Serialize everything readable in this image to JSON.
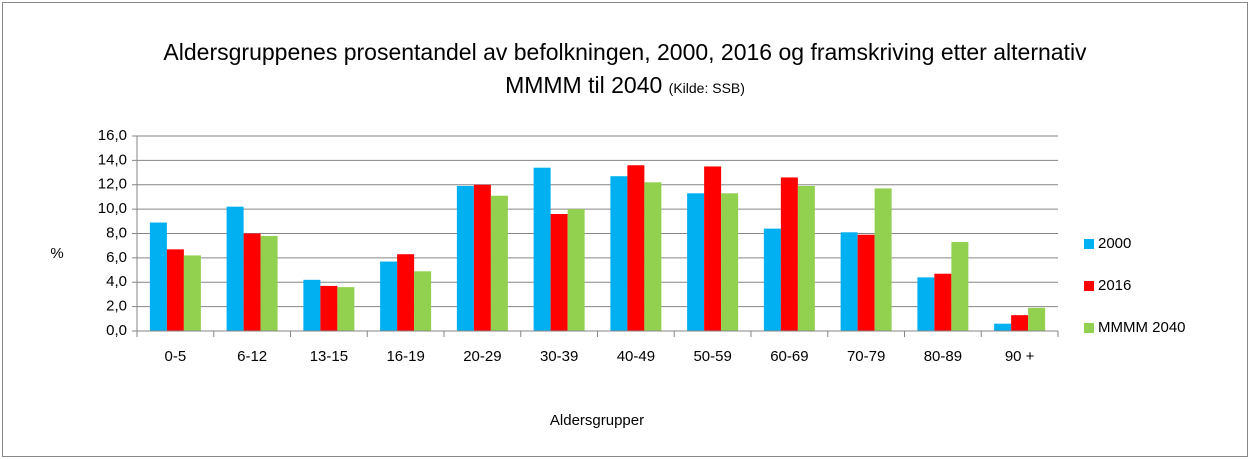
{
  "chart_data": {
    "type": "bar",
    "title": "Aldersgruppenes prosentandel av befolkningen, 2000, 2016 og framskriving etter alternativ MMMM til 2040",
    "subtitle": "(Kilde: SSB)",
    "x_label": "Aldersgrupper",
    "y_label": "%",
    "categories": [
      "0-5",
      "6-12",
      "13-15",
      "16-19",
      "20-29",
      "30-39",
      "40-49",
      "50-59",
      "60-69",
      "70-79",
      "80-89",
      "90 +"
    ],
    "series": [
      {
        "name": "2000",
        "color": "#00b0f0",
        "values": [
          8.9,
          10.2,
          4.2,
          5.7,
          11.9,
          13.4,
          12.7,
          11.3,
          8.4,
          8.1,
          4.4,
          0.6
        ]
      },
      {
        "name": "2016",
        "color": "#ff0000",
        "values": [
          6.7,
          8.0,
          3.7,
          6.3,
          12.0,
          9.6,
          13.6,
          13.5,
          12.6,
          7.9,
          4.7,
          1.3
        ]
      },
      {
        "name": "MMMM 2040",
        "color": "#92d050",
        "values": [
          6.2,
          7.8,
          3.6,
          4.9,
          11.1,
          10.0,
          12.2,
          11.3,
          11.9,
          11.7,
          7.3,
          1.9
        ]
      }
    ],
    "ylim": [
      0,
      16
    ],
    "yticks": [
      {
        "value": 0,
        "label": "0,0"
      },
      {
        "value": 2,
        "label": "2,0"
      },
      {
        "value": 4,
        "label": "4,0"
      },
      {
        "value": 6,
        "label": "6,0"
      },
      {
        "value": 8,
        "label": "8,0"
      },
      {
        "value": 10,
        "label": "10,0"
      },
      {
        "value": 12,
        "label": "12,0"
      },
      {
        "value": 14,
        "label": "14,0"
      },
      {
        "value": 16,
        "label": "16,0"
      }
    ],
    "grid": true,
    "legend": "right"
  }
}
